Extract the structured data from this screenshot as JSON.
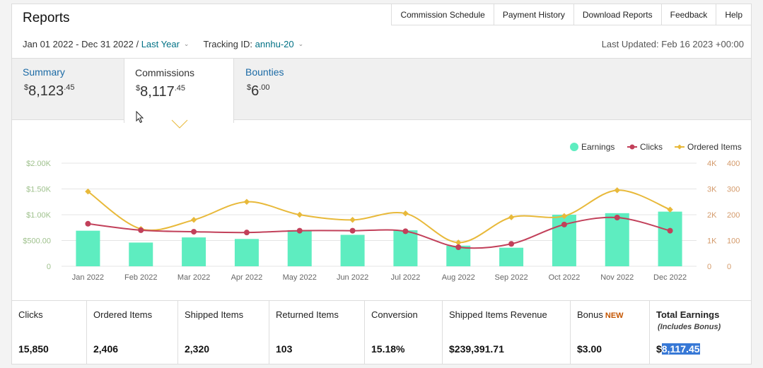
{
  "header": {
    "title": "Reports",
    "nav": [
      "Commission Schedule",
      "Payment History",
      "Download Reports",
      "Feedback",
      "Help"
    ]
  },
  "filters": {
    "date_range": "Jan 01 2022 - Dec 31 2022 /",
    "period": "Last Year",
    "tracking_label": "Tracking ID:",
    "tracking_id": "annhu-20",
    "last_updated": "Last Updated: Feb 16 2023 +00:00"
  },
  "tabs": {
    "summary": {
      "label": "Summary",
      "currency": "$",
      "whole": "8,123",
      "cents": ".45"
    },
    "commissions": {
      "label": "Commissions",
      "currency": "$",
      "whole": "8,117",
      "cents": ".45"
    },
    "bounties": {
      "label": "Bounties",
      "currency": "$",
      "whole": "6",
      "cents": ".00"
    }
  },
  "chart_data": {
    "type": "bar",
    "categories": [
      "Jan 2022",
      "Feb 2022",
      "Mar 2022",
      "Apr 2022",
      "May 2022",
      "Jun 2022",
      "Jul 2022",
      "Aug 2022",
      "Sep 2022",
      "Oct 2022",
      "Nov 2022",
      "Dec 2022"
    ],
    "series": [
      {
        "name": "Earnings",
        "type": "bar",
        "axis": "left",
        "color": "#5eedc0",
        "values": [
          690,
          460,
          560,
          530,
          700,
          610,
          700,
          400,
          360,
          1000,
          1030,
          1060
        ]
      },
      {
        "name": "Clicks",
        "type": "line",
        "axis": "right-outer",
        "color": "#c2405a",
        "values": [
          1650,
          1400,
          1340,
          1310,
          1380,
          1380,
          1360,
          740,
          870,
          1620,
          1890,
          1380
        ]
      },
      {
        "name": "Ordered Items",
        "type": "line",
        "axis": "right-inner",
        "color": "#e8b93a",
        "values": [
          290,
          145,
          180,
          250,
          200,
          180,
          205,
          92,
          190,
          195,
          295,
          220
        ]
      }
    ],
    "y_left": {
      "ticks": [
        "0",
        "$500.00",
        "$1.00K",
        "$1.50K",
        "$2.00K"
      ],
      "range": [
        0,
        2000
      ],
      "color": "#9fc18d"
    },
    "y_right_outer": {
      "ticks": [
        "0",
        "1K",
        "2K",
        "3K",
        "4K"
      ],
      "range": [
        0,
        4000
      ],
      "color": "#d49a6a"
    },
    "y_right_inner": {
      "ticks": [
        "0",
        "100",
        "200",
        "300",
        "400"
      ],
      "range": [
        0,
        400
      ],
      "color": "#d49a6a"
    },
    "legend_position": "top-right",
    "grid": true
  },
  "stats": [
    {
      "label": "Clicks",
      "value": "15,850"
    },
    {
      "label": "Ordered Items",
      "value": "2,406"
    },
    {
      "label": "Shipped Items",
      "value": "2,320"
    },
    {
      "label": "Returned Items",
      "value": "103"
    },
    {
      "label": "Conversion",
      "value": "15.18%"
    },
    {
      "label": "Shipped Items Revenue",
      "value": "$239,391.71"
    },
    {
      "label": "Bonus",
      "badge": "NEW",
      "value": "$3.00"
    },
    {
      "label": "Total Earnings",
      "sub": "(Includes Bonus)",
      "value_prefix": "$",
      "value_selected": "8,117.45"
    }
  ]
}
